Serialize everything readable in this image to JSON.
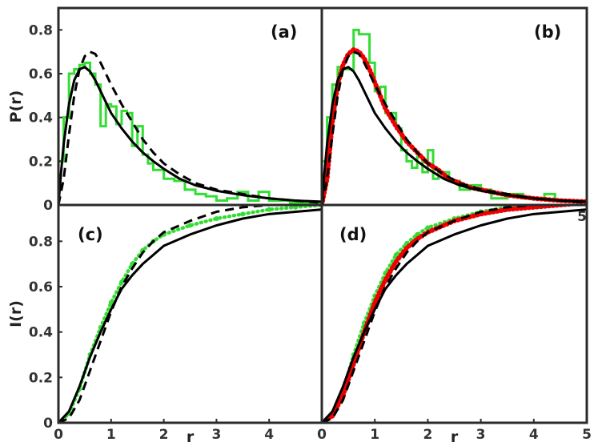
{
  "chart_data": [
    {
      "panel_label": "(a)",
      "type": "line",
      "xlim": [
        0,
        5
      ],
      "ylim": [
        0,
        0.9
      ],
      "yticks": [
        "0",
        "0.2",
        "0.4",
        "0.6",
        "0.8"
      ],
      "ylabel": "P(r)",
      "series": [
        {
          "style": "green-step",
          "color": "#33dd33",
          "x": [
            0,
            0.1,
            0.2,
            0.3,
            0.4,
            0.5,
            0.6,
            0.7,
            0.8,
            0.9,
            1.0,
            1.1,
            1.2,
            1.3,
            1.4,
            1.5,
            1.6,
            1.7,
            1.8,
            2.0,
            2.2,
            2.4,
            2.6,
            2.8,
            3.0,
            3.2,
            3.4,
            3.6,
            3.8,
            4.0,
            4.2,
            4.4,
            4.6,
            4.8,
            5.0
          ],
          "y": [
            0.2,
            0.4,
            0.6,
            0.62,
            0.64,
            0.65,
            0.6,
            0.55,
            0.36,
            0.46,
            0.45,
            0.37,
            0.43,
            0.42,
            0.27,
            0.36,
            0.23,
            0.19,
            0.16,
            0.12,
            0.11,
            0.07,
            0.05,
            0.04,
            0.02,
            0.03,
            0.06,
            0.02,
            0.06,
            0.02,
            0.02,
            0.01,
            0.01,
            0.01,
            0.01
          ]
        },
        {
          "style": "black-solid",
          "color": "#000000",
          "x": [
            0,
            0.05,
            0.1,
            0.2,
            0.3,
            0.4,
            0.5,
            0.6,
            0.7,
            0.8,
            0.9,
            1.0,
            1.2,
            1.4,
            1.6,
            1.8,
            2.0,
            2.3,
            2.6,
            3.0,
            3.5,
            4.0,
            4.5,
            5.0
          ],
          "y": [
            0,
            0.15,
            0.28,
            0.46,
            0.57,
            0.62,
            0.63,
            0.61,
            0.57,
            0.52,
            0.47,
            0.42,
            0.35,
            0.29,
            0.24,
            0.2,
            0.165,
            0.12,
            0.09,
            0.065,
            0.045,
            0.03,
            0.02,
            0.015
          ]
        },
        {
          "style": "black-dashed",
          "color": "#000000",
          "x": [
            0,
            0.1,
            0.2,
            0.3,
            0.4,
            0.5,
            0.6,
            0.7,
            0.8,
            0.9,
            1.0,
            1.2,
            1.4,
            1.6,
            1.8,
            2.0,
            2.3,
            2.6,
            3.0,
            3.5,
            4.0,
            4.5,
            5.0
          ],
          "y": [
            0,
            0.12,
            0.32,
            0.5,
            0.62,
            0.68,
            0.7,
            0.69,
            0.65,
            0.6,
            0.55,
            0.46,
            0.38,
            0.3,
            0.24,
            0.19,
            0.14,
            0.1,
            0.07,
            0.05,
            0.03,
            0.02,
            0.01
          ]
        }
      ]
    },
    {
      "panel_label": "(b)",
      "type": "line",
      "xlim": [
        0,
        5
      ],
      "ylim": [
        0,
        0.9
      ],
      "yticks": [],
      "ylabel": "",
      "series": [
        {
          "style": "green-step",
          "color": "#33dd33",
          "x": [
            0,
            0.1,
            0.2,
            0.3,
            0.4,
            0.5,
            0.6,
            0.7,
            0.9,
            1.0,
            1.1,
            1.2,
            1.3,
            1.4,
            1.5,
            1.6,
            1.7,
            1.8,
            1.9,
            2.0,
            2.1,
            2.2,
            2.4,
            2.6,
            2.8,
            3.0,
            3.2,
            3.5,
            3.8,
            4.0,
            4.2,
            4.4,
            4.6,
            5.0
          ],
          "y": [
            0.2,
            0.4,
            0.55,
            0.63,
            0.62,
            0.62,
            0.8,
            0.78,
            0.65,
            0.52,
            0.54,
            0.42,
            0.42,
            0.35,
            0.25,
            0.2,
            0.17,
            0.22,
            0.15,
            0.25,
            0.12,
            0.15,
            0.11,
            0.07,
            0.09,
            0.07,
            0.03,
            0.05,
            0.03,
            0.03,
            0.05,
            0.02,
            0.02,
            0.01
          ]
        },
        {
          "style": "red-dotted",
          "color": "#ee0000",
          "x": [
            0,
            0.1,
            0.2,
            0.3,
            0.4,
            0.5,
            0.6,
            0.7,
            0.8,
            0.9,
            1.0,
            1.1,
            1.2,
            1.4,
            1.6,
            1.8,
            2.0,
            2.2,
            2.4,
            2.6,
            2.8,
            3.0,
            3.5,
            4.0,
            4.5,
            5.0
          ],
          "y": [
            0,
            0.12,
            0.38,
            0.55,
            0.64,
            0.69,
            0.71,
            0.7,
            0.67,
            0.62,
            0.56,
            0.5,
            0.44,
            0.36,
            0.29,
            0.24,
            0.19,
            0.16,
            0.12,
            0.1,
            0.08,
            0.07,
            0.045,
            0.03,
            0.02,
            0.015
          ]
        },
        {
          "style": "black-solid",
          "color": "#000000",
          "x": [
            0,
            0.05,
            0.1,
            0.2,
            0.3,
            0.4,
            0.5,
            0.6,
            0.7,
            0.8,
            0.9,
            1.0,
            1.2,
            1.4,
            1.6,
            1.8,
            2.0,
            2.3,
            2.6,
            3.0,
            3.5,
            4.0,
            4.5,
            5.0
          ],
          "y": [
            0,
            0.15,
            0.28,
            0.46,
            0.57,
            0.62,
            0.63,
            0.61,
            0.57,
            0.52,
            0.47,
            0.42,
            0.35,
            0.29,
            0.24,
            0.2,
            0.165,
            0.12,
            0.09,
            0.065,
            0.045,
            0.03,
            0.02,
            0.015
          ]
        },
        {
          "style": "black-dashed",
          "color": "#000000",
          "x": [
            0,
            0.1,
            0.2,
            0.3,
            0.4,
            0.5,
            0.6,
            0.7,
            0.8,
            0.9,
            1.0,
            1.2,
            1.4,
            1.6,
            1.8,
            2.0,
            2.3,
            2.6,
            3.0,
            3.5,
            4.0,
            4.5,
            5.0
          ],
          "y": [
            0,
            0.12,
            0.32,
            0.5,
            0.62,
            0.68,
            0.7,
            0.69,
            0.65,
            0.6,
            0.55,
            0.46,
            0.38,
            0.3,
            0.24,
            0.19,
            0.14,
            0.1,
            0.07,
            0.05,
            0.03,
            0.02,
            0.01
          ]
        }
      ]
    },
    {
      "panel_label": "(c)",
      "type": "line",
      "xlim": [
        0,
        5
      ],
      "ylim": [
        0,
        0.96
      ],
      "xticks": [
        "0",
        "1",
        "2",
        "3",
        "4"
      ],
      "yticks": [
        "0",
        "0.2",
        "0.4",
        "0.6",
        "0.8"
      ],
      "xlabel": "r",
      "ylabel": "I(r)",
      "series": [
        {
          "style": "green-dots",
          "color": "#33dd33",
          "x": [
            0,
            0.2,
            0.4,
            0.6,
            0.8,
            1.0,
            1.2,
            1.4,
            1.6,
            1.8,
            2.0,
            2.5,
            3.0,
            3.5,
            4.0,
            4.5,
            5.0
          ],
          "y": [
            0,
            0.04,
            0.15,
            0.3,
            0.42,
            0.53,
            0.62,
            0.7,
            0.76,
            0.8,
            0.83,
            0.87,
            0.9,
            0.92,
            0.94,
            0.95,
            0.96
          ]
        },
        {
          "style": "black-solid",
          "color": "#000000",
          "x": [
            0,
            0.2,
            0.4,
            0.6,
            0.8,
            1.0,
            1.2,
            1.4,
            1.6,
            1.8,
            2.0,
            2.5,
            3.0,
            3.5,
            4.0,
            4.5,
            5.0
          ],
          "y": [
            0,
            0.05,
            0.16,
            0.29,
            0.4,
            0.5,
            0.59,
            0.65,
            0.7,
            0.74,
            0.78,
            0.83,
            0.87,
            0.9,
            0.92,
            0.93,
            0.94
          ]
        },
        {
          "style": "black-dashed",
          "color": "#000000",
          "x": [
            0,
            0.2,
            0.4,
            0.6,
            0.8,
            1.0,
            1.2,
            1.4,
            1.6,
            1.8,
            2.0,
            2.5,
            3.0,
            3.5,
            4.0,
            4.5,
            5.0
          ],
          "y": [
            0,
            0.02,
            0.1,
            0.23,
            0.36,
            0.49,
            0.6,
            0.68,
            0.75,
            0.8,
            0.84,
            0.89,
            0.93,
            0.95,
            0.96,
            0.97,
            0.98
          ]
        }
      ]
    },
    {
      "panel_label": "(d)",
      "type": "line",
      "xlim": [
        0,
        5
      ],
      "ylim": [
        0,
        0.96
      ],
      "xticks": [
        "0",
        "1",
        "2",
        "3",
        "4",
        "5"
      ],
      "yticks": [],
      "xlabel": "r",
      "ylabel": "",
      "series": [
        {
          "style": "green-dots",
          "color": "#33dd33",
          "x": [
            0,
            0.2,
            0.4,
            0.6,
            0.8,
            1.0,
            1.2,
            1.4,
            1.6,
            1.8,
            2.0,
            2.5,
            3.0,
            3.5,
            4.0,
            4.5,
            5.0
          ],
          "y": [
            0,
            0.04,
            0.14,
            0.3,
            0.44,
            0.56,
            0.66,
            0.74,
            0.79,
            0.83,
            0.86,
            0.9,
            0.93,
            0.95,
            0.96,
            0.97,
            0.98
          ]
        },
        {
          "style": "red-dotted",
          "color": "#ee0000",
          "x": [
            0,
            0.2,
            0.4,
            0.6,
            0.8,
            1.0,
            1.2,
            1.4,
            1.6,
            1.8,
            2.0,
            2.5,
            3.0,
            3.5,
            4.0,
            4.5,
            5.0
          ],
          "y": [
            0,
            0.03,
            0.12,
            0.26,
            0.4,
            0.53,
            0.63,
            0.71,
            0.77,
            0.81,
            0.84,
            0.89,
            0.92,
            0.94,
            0.95,
            0.96,
            0.97
          ]
        },
        {
          "style": "black-solid",
          "color": "#000000",
          "x": [
            0,
            0.2,
            0.4,
            0.6,
            0.8,
            1.0,
            1.2,
            1.4,
            1.6,
            1.8,
            2.0,
            2.5,
            3.0,
            3.5,
            4.0,
            4.5,
            5.0
          ],
          "y": [
            0,
            0.05,
            0.16,
            0.29,
            0.4,
            0.5,
            0.59,
            0.65,
            0.7,
            0.74,
            0.78,
            0.83,
            0.87,
            0.9,
            0.92,
            0.93,
            0.94
          ]
        },
        {
          "style": "black-dashed",
          "color": "#000000",
          "x": [
            0,
            0.2,
            0.4,
            0.6,
            0.8,
            1.0,
            1.2,
            1.4,
            1.6,
            1.8,
            2.0,
            2.5,
            3.0,
            3.5,
            4.0,
            4.5,
            5.0
          ],
          "y": [
            0,
            0.02,
            0.1,
            0.23,
            0.36,
            0.49,
            0.6,
            0.68,
            0.75,
            0.8,
            0.84,
            0.89,
            0.93,
            0.95,
            0.96,
            0.97,
            0.98
          ]
        }
      ]
    }
  ],
  "stray_tick_label": "5"
}
